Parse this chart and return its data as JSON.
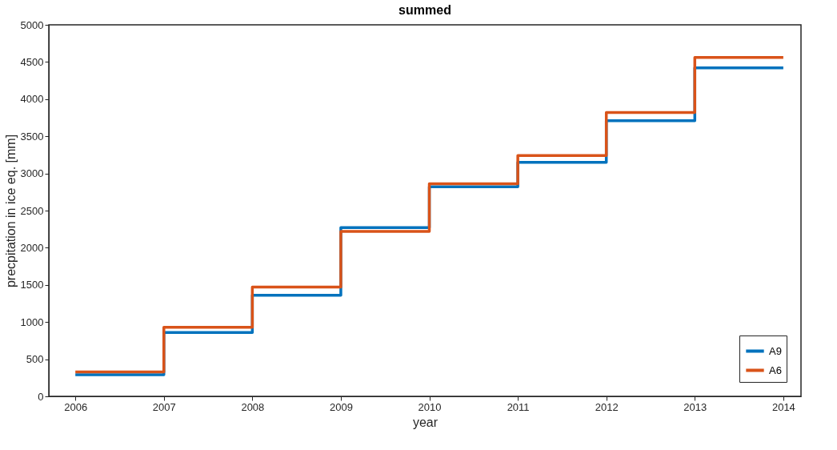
{
  "chart_data": {
    "type": "step",
    "title": "summed",
    "xlabel": "year",
    "ylabel": "precpitation in ice eq. [mm]",
    "x": [
      2006,
      2007,
      2008,
      2009,
      2010,
      2011,
      2012,
      2013,
      2014
    ],
    "series": [
      {
        "name": "A9",
        "color": "#0072bd",
        "values": [
          290,
          860,
          1360,
          2270,
          2820,
          3150,
          3710,
          4420,
          4420
        ]
      },
      {
        "name": "A6",
        "color": "#d95319",
        "values": [
          330,
          930,
          1470,
          2220,
          2860,
          3240,
          3820,
          4560,
          4560
        ]
      }
    ],
    "xlim": [
      2005.7,
      2014.2
    ],
    "xticks": [
      2006,
      2007,
      2008,
      2009,
      2010,
      2011,
      2012,
      2013,
      2014
    ],
    "ylim": [
      0,
      5000
    ],
    "yticks": [
      0,
      500,
      1000,
      1500,
      2000,
      2500,
      3000,
      3500,
      4000,
      4500,
      5000
    ],
    "grid": false,
    "legend": "bottom right",
    "line_style": "solid",
    "marker": "none"
  }
}
